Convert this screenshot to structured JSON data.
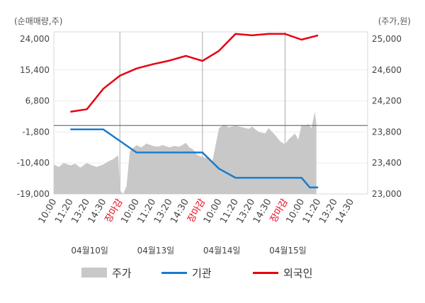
{
  "chart_data": {
    "type": "line",
    "left_axis_unit": "(순매매량,주)",
    "right_axis_unit": "(주가,원)",
    "left_ticks": [
      "24,000",
      "15,400",
      "6,800",
      "-1,800",
      "-10,400",
      "-19,000"
    ],
    "right_ticks": [
      "25,000",
      "24,600",
      "24,200",
      "23,800",
      "23,400",
      "23,000"
    ],
    "left_ylim": [
      -19000,
      24000
    ],
    "right_ylim": [
      23000,
      25000
    ],
    "x_tick_labels": [
      "10:00",
      "11:20",
      "13:20",
      "14:30",
      "장마감",
      "10:00",
      "11:20",
      "13:20",
      "14:30",
      "장마감",
      "10:00",
      "11:20",
      "13:20",
      "14:30",
      "장마감",
      "10:00",
      "11:20",
      "13:20",
      "14:30"
    ],
    "close_label": "장마감",
    "dates": [
      "04월10일",
      "04월13일",
      "04월14일",
      "04월15일"
    ],
    "series": [
      {
        "name": "주가",
        "axis": "right",
        "color": "#c8c8c8",
        "x": [
          0,
          0.3,
          0.6,
          1,
          1.3,
          1.6,
          2,
          2.3,
          2.6,
          3,
          3.3,
          3.6,
          3.9,
          4,
          4.2,
          4.4,
          4.6,
          5,
          5.3,
          5.6,
          6,
          6.3,
          6.6,
          7,
          7.3,
          7.6,
          8,
          8.2,
          8.4,
          8.7,
          9.3,
          9.6,
          10,
          10.3,
          10.6,
          11,
          11.4,
          11.8,
          12,
          12.4,
          12.8,
          13,
          13.4,
          13.7,
          14,
          14.2,
          14.6,
          14.8,
          15,
          15.2,
          15.4,
          15.6,
          15.8,
          15.9
        ],
        "values": [
          23380,
          23350,
          23400,
          23370,
          23390,
          23340,
          23400,
          23370,
          23350,
          23380,
          23420,
          23450,
          23500,
          23050,
          23000,
          23100,
          23550,
          23630,
          23600,
          23650,
          23620,
          23610,
          23630,
          23600,
          23620,
          23610,
          23660,
          23600,
          23580,
          23500,
          23460,
          23420,
          23850,
          23890,
          23860,
          23880,
          23860,
          23840,
          23870,
          23800,
          23780,
          23850,
          23760,
          23680,
          23640,
          23700,
          23780,
          23700,
          23890,
          23880,
          23900,
          23850,
          24060,
          23900
        ]
      },
      {
        "name": "기관",
        "axis": "left",
        "color": "#1a7ccd",
        "x": [
          1,
          2,
          3,
          4,
          5,
          6,
          7,
          8,
          9,
          10,
          11,
          12,
          13,
          14,
          15,
          15.5,
          16
        ],
        "values": [
          -1100,
          -1100,
          -1100,
          -4300,
          -7500,
          -7500,
          -7500,
          -7500,
          -7500,
          -12000,
          -14500,
          -14500,
          -14500,
          -14500,
          -14500,
          -17200,
          -17200
        ]
      },
      {
        "name": "외국인",
        "axis": "left",
        "color": "#e60012",
        "x": [
          1,
          2,
          3,
          4,
          5,
          6,
          7,
          8,
          9,
          10,
          11,
          12,
          13,
          14,
          15,
          16
        ],
        "values": [
          3800,
          4500,
          10200,
          13800,
          15800,
          17000,
          18000,
          19300,
          17900,
          20700,
          25400,
          25000,
          25400,
          25400,
          23800,
          25000
        ]
      }
    ],
    "grid": true,
    "legend_position": "bottom"
  },
  "legend": [
    "주가",
    "기관",
    "외국인"
  ]
}
